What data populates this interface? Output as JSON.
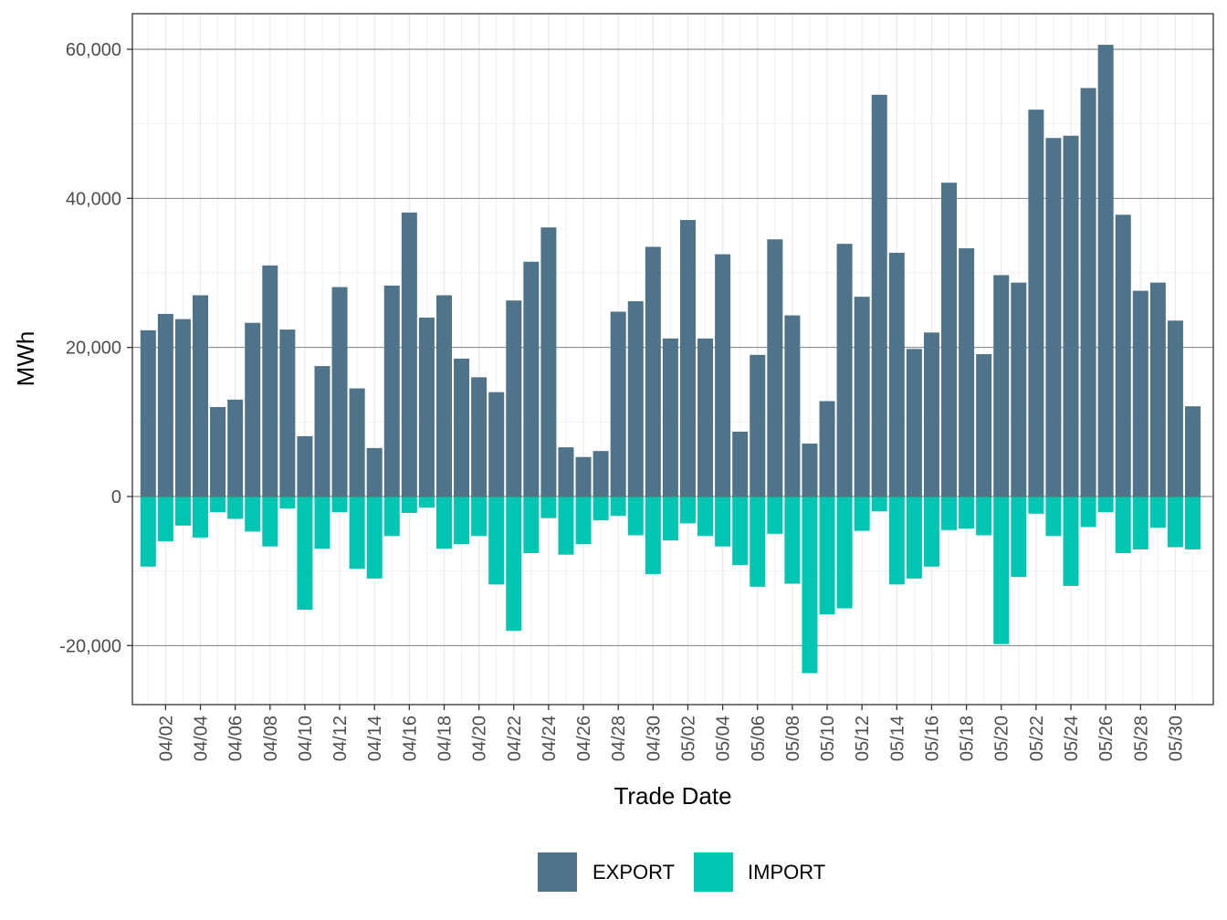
{
  "chart_data": {
    "type": "bar",
    "stacked": true,
    "xlabel": "Trade Date",
    "ylabel": "MWh",
    "ylim": [
      -28000,
      65000
    ],
    "yticks": [
      -20000,
      0,
      20000,
      40000,
      60000
    ],
    "ytick_labels": [
      "-20,000",
      "0",
      "20,000",
      "40,000",
      "60,000"
    ],
    "grid": true,
    "legend": {
      "position": "bottom"
    },
    "categories": [
      "04/01",
      "04/02",
      "04/03",
      "04/04",
      "04/05",
      "04/06",
      "04/07",
      "04/08",
      "04/09",
      "04/10",
      "04/11",
      "04/12",
      "04/13",
      "04/14",
      "04/15",
      "04/16",
      "04/17",
      "04/18",
      "04/19",
      "04/20",
      "04/21",
      "04/22",
      "04/23",
      "04/24",
      "04/25",
      "04/26",
      "04/27",
      "04/28",
      "04/29",
      "04/30",
      "05/01",
      "05/02",
      "05/03",
      "05/04",
      "05/05",
      "05/06",
      "05/07",
      "05/08",
      "05/09",
      "05/10",
      "05/11",
      "05/12",
      "05/13",
      "05/14",
      "05/15",
      "05/16",
      "05/17",
      "05/18",
      "05/19",
      "05/20",
      "05/21",
      "05/22",
      "05/23",
      "05/24",
      "05/25",
      "05/26",
      "05/27",
      "05/28",
      "05/29",
      "05/30",
      "05/31"
    ],
    "xtick_labels": [
      "04/02",
      "04/04",
      "04/06",
      "04/08",
      "04/10",
      "04/12",
      "04/14",
      "04/16",
      "04/18",
      "04/20",
      "04/22",
      "04/24",
      "04/26",
      "04/28",
      "04/30",
      "05/02",
      "05/04",
      "05/06",
      "05/08",
      "05/10",
      "05/12",
      "05/14",
      "05/16",
      "05/18",
      "05/20",
      "05/22",
      "05/24",
      "05/26",
      "05/28",
      "05/30"
    ],
    "series": [
      {
        "name": "EXPORT",
        "color": "#4f7489",
        "values": [
          22300,
          24500,
          23800,
          27000,
          12000,
          13000,
          23300,
          31000,
          22400,
          8100,
          17500,
          28100,
          14500,
          6500,
          28300,
          38100,
          24000,
          27000,
          18500,
          16000,
          14000,
          26300,
          31500,
          36100,
          6600,
          5300,
          6100,
          24800,
          26200,
          33500,
          21200,
          37100,
          21200,
          32500,
          8700,
          19000,
          34500,
          24300,
          7100,
          12800,
          33900,
          26800,
          53900,
          32700,
          19800,
          22000,
          42100,
          33300,
          19100,
          29700,
          28700,
          51900,
          48100,
          48400,
          54800,
          60600,
          37800,
          27600,
          28700,
          23600,
          12100
        ]
      },
      {
        "name": "IMPORT",
        "color": "#00c5b0",
        "values": [
          -9400,
          -6000,
          -3900,
          -5500,
          -2100,
          -3000,
          -4700,
          -6700,
          -1600,
          -15200,
          -7000,
          -2100,
          -9700,
          -11000,
          -5300,
          -2200,
          -1500,
          -7000,
          -6400,
          -5300,
          -11800,
          -18000,
          -7600,
          -2900,
          -7800,
          -6400,
          -3200,
          -2600,
          -5200,
          -10400,
          -5900,
          -3600,
          -5300,
          -6700,
          -9200,
          -12100,
          -5000,
          -11700,
          -23700,
          -15800,
          -15000,
          -4600,
          -2000,
          -11800,
          -11000,
          -9400,
          -4500,
          -4300,
          -5200,
          -19800,
          -10800,
          -2300,
          -5300,
          -12000,
          -4100,
          -2100,
          -7600,
          -7100,
          -4200,
          -6800,
          -7100
        ]
      }
    ]
  }
}
